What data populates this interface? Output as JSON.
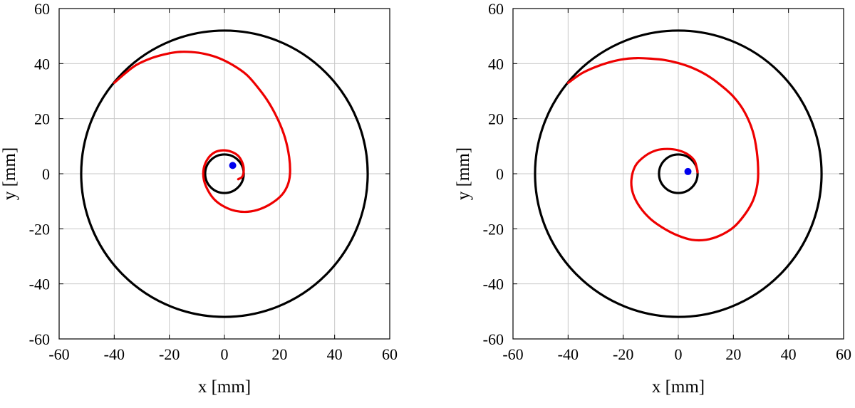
{
  "colors": {
    "circle": "#000000",
    "spiral": "#ee0000",
    "dot": "#0000ee",
    "grid": "#c8c8c8"
  },
  "chart_data": [
    {
      "type": "line",
      "xlabel": "x [mm]",
      "ylabel": "y [mm]",
      "xlim": [
        -60,
        60
      ],
      "ylim": [
        -60,
        60
      ],
      "xticks": [
        "-60",
        "-40",
        "-20",
        "0",
        "20",
        "40",
        "60"
      ],
      "yticks": [
        "60",
        "40",
        "20",
        "0",
        "-20",
        "-40",
        "-60"
      ],
      "grid": true,
      "outer_circle": {
        "center": [
          0,
          0
        ],
        "radius": 52
      },
      "inner_circle": {
        "center": [
          0,
          0
        ],
        "radius": 7
      },
      "spiral": {
        "x": [
          -40,
          -36,
          -32,
          -27,
          -22,
          -17,
          -12,
          -7,
          -2,
          3,
          8,
          12,
          16,
          19.5,
          22,
          23.5,
          23.8,
          23,
          21,
          17.5,
          13,
          8.5,
          4,
          0,
          -3.5,
          -6,
          -7.5,
          -7.5,
          -6,
          -3.5,
          -0.5,
          2.5,
          5,
          6.5,
          7,
          6.5,
          5
        ],
        "y": [
          33,
          36.5,
          39.5,
          41.8,
          43.3,
          44.2,
          44.2,
          43.5,
          42,
          39.5,
          36,
          31.5,
          26,
          19.5,
          13,
          6,
          0,
          -4,
          -7.5,
          -10.5,
          -12.8,
          -13.8,
          -13.5,
          -12,
          -9.5,
          -6,
          -2,
          2,
          5.5,
          7.8,
          8.5,
          8,
          6.5,
          4,
          1.5,
          -1,
          -2
        ],
        "series_color": "red"
      },
      "point": {
        "x": 3,
        "y": 3
      }
    },
    {
      "type": "line",
      "xlabel": "x [mm]",
      "ylabel": "y [mm]",
      "xlim": [
        -60,
        60
      ],
      "ylim": [
        -60,
        60
      ],
      "xticks": [
        "-60",
        "-40",
        "-20",
        "0",
        "20",
        "40",
        "60"
      ],
      "yticks": [
        "60",
        "40",
        "20",
        "0",
        "-20",
        "-40",
        "-60"
      ],
      "grid": true,
      "outer_circle": {
        "center": [
          0,
          0
        ],
        "radius": 52
      },
      "inner_circle": {
        "center": [
          0,
          0
        ],
        "radius": 7
      },
      "spiral": {
        "x": [
          -40,
          -35,
          -30,
          -25,
          -20,
          -15,
          -10,
          -5,
          0,
          5,
          10,
          15,
          20,
          24,
          27,
          28.5,
          29,
          28.5,
          27,
          24,
          20,
          15,
          10,
          5,
          0,
          -5,
          -10,
          -14,
          -16.5,
          -17,
          -15.5,
          -12,
          -8,
          -4,
          0,
          3.5,
          6,
          7
        ],
        "y": [
          33,
          36.5,
          38.8,
          40.5,
          41.6,
          42,
          41.8,
          41.3,
          40.2,
          38.5,
          36,
          32.5,
          28,
          22.5,
          15.5,
          8,
          0,
          -5,
          -10,
          -15,
          -19.5,
          -22.5,
          -24,
          -24,
          -22.5,
          -20,
          -16.5,
          -12,
          -7,
          -2,
          3,
          6.5,
          8.5,
          9,
          8.5,
          7,
          4.5,
          0.5
        ],
        "series_color": "red"
      },
      "point": {
        "x": 3.5,
        "y": 0.8
      }
    }
  ]
}
